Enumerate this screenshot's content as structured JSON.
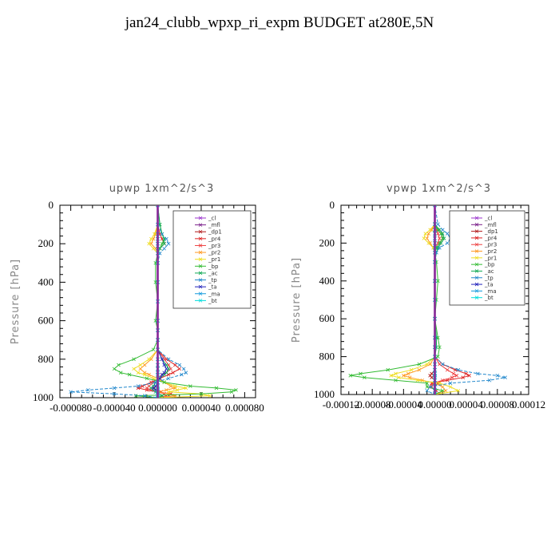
{
  "figure_title": "jan24_clubb_wpxp_ri_expm  BUDGET at280E,5N",
  "legend_entries": [
    {
      "name": "_cl",
      "color": "#9933cc"
    },
    {
      "name": "_mfl",
      "color": "#7a1f8a"
    },
    {
      "name": "_dp1",
      "color": "#b01515"
    },
    {
      "name": "_pr4",
      "color": "#dd2020"
    },
    {
      "name": "_pr3",
      "color": "#ee4040"
    },
    {
      "name": "_pr2",
      "color": "#ff9922"
    },
    {
      "name": "_pr1",
      "color": "#eedd22"
    },
    {
      "name": "_bp",
      "color": "#33bb33"
    },
    {
      "name": "_ac",
      "color": "#11aa55"
    },
    {
      "name": "_tp",
      "color": "#2288cc"
    },
    {
      "name": "_ta",
      "color": "#2222bb"
    },
    {
      "name": "_ma",
      "color": "#1199dd"
    },
    {
      "name": "_bt",
      "color": "#00dddd"
    }
  ],
  "chart_data": [
    {
      "type": "line",
      "title": "upwp   1xm^2/s^3",
      "ylabel": "Pressure [hPa]",
      "xlabel": "",
      "xlim": [
        -9e-05,
        9e-05
      ],
      "ylim": [
        1000,
        0
      ],
      "y_inverted": true,
      "xticks": [
        -8e-05,
        -4e-05,
        0,
        4e-05,
        8e-05
      ],
      "xtick_labels": [
        "-0.000080",
        "-0.000040",
        "0.000000",
        "0.000040",
        "0.000080"
      ],
      "yticks": [
        0,
        200,
        400,
        600,
        800,
        1000
      ],
      "ytick_labels": [
        "0",
        "200",
        "400",
        "600",
        "800",
        "1000"
      ],
      "legend": "top-right",
      "y": [
        0,
        100,
        150,
        175,
        200,
        225,
        250,
        300,
        400,
        500,
        600,
        650,
        700,
        750,
        800,
        830,
        850,
        870,
        880,
        900,
        920,
        940,
        950,
        960,
        970,
        980,
        990,
        1000
      ],
      "series": [
        {
          "name": "_cl",
          "values": [
            0,
            0,
            0,
            0,
            0,
            0,
            0,
            0,
            0,
            0,
            0,
            0,
            0,
            0,
            0,
            0,
            0,
            0,
            0,
            0,
            0,
            0,
            0,
            0,
            0,
            0,
            0,
            0
          ]
        },
        {
          "name": "_mfl",
          "values": [
            0,
            0,
            0,
            0,
            0,
            0,
            0,
            0,
            0,
            0,
            0,
            0,
            0,
            0,
            0,
            0,
            0,
            0,
            0,
            0,
            0,
            0,
            0,
            0,
            0,
            0,
            0,
            0
          ]
        },
        {
          "name": "_dp1",
          "values": [
            0,
            0,
            0,
            0,
            0,
            0,
            0,
            0,
            0,
            0,
            0,
            0,
            0,
            0,
            0,
            0,
            0,
            0,
            0,
            0,
            0,
            0,
            -4e-06,
            0,
            3e-06,
            0,
            0,
            0
          ]
        },
        {
          "name": "_pr4",
          "values": [
            0,
            0,
            2e-06,
            4e-06,
            6e-06,
            2e-06,
            0,
            0,
            0,
            0,
            0,
            0,
            0,
            0,
            8e-06,
            1.6e-05,
            2e-05,
            1.4e-05,
            1e-05,
            2e-06,
            -6e-06,
            -1.4e-05,
            -1.8e-05,
            -1e-05,
            0,
            1.2e-05,
            1.6e-05,
            0
          ]
        },
        {
          "name": "_pr3",
          "values": [
            0,
            0,
            0,
            0,
            0,
            0,
            0,
            0,
            0,
            0,
            0,
            0,
            0,
            0,
            6e-06,
            1e-05,
            1.2e-05,
            8e-06,
            4e-06,
            0,
            -4e-06,
            -8e-06,
            -1e-05,
            -6e-06,
            0,
            6e-06,
            8e-06,
            0
          ]
        },
        {
          "name": "_pr2",
          "values": [
            0,
            0,
            -2e-06,
            -4e-06,
            -6e-06,
            -2e-06,
            0,
            0,
            0,
            0,
            0,
            0,
            0,
            0,
            -6e-06,
            -1.2e-05,
            -1.6e-05,
            -1.2e-05,
            -8e-06,
            0,
            6e-06,
            1.2e-05,
            1.6e-05,
            8e-06,
            0,
            1e-05,
            1.6e-05,
            0
          ]
        },
        {
          "name": "_pr1",
          "values": [
            0,
            0,
            -3e-06,
            -6e-06,
            -8e-06,
            -4e-06,
            0,
            0,
            0,
            0,
            0,
            0,
            0,
            0,
            -8e-06,
            -1.6e-05,
            -2.2e-05,
            -1.8e-05,
            -1.2e-05,
            -4e-06,
            6e-06,
            1.6e-05,
            2.6e-05,
            1.8e-05,
            1e-05,
            4e-05,
            4.8e-05,
            0
          ]
        },
        {
          "name": "_bp",
          "values": [
            0,
            2e-06,
            4e-06,
            6e-06,
            4e-06,
            2e-06,
            0,
            -2e-06,
            -2e-06,
            0,
            -2e-06,
            0,
            0,
            -4e-06,
            -2.2e-05,
            -3.6e-05,
            -4e-05,
            -3.4e-05,
            -2.6e-05,
            -1e-05,
            6e-06,
            3e-05,
            5.4e-05,
            7.2e-05,
            6.8e-05,
            4e-05,
            -2e-05,
            0
          ]
        },
        {
          "name": "_ac",
          "values": [
            0,
            2e-06,
            4e-06,
            6e-06,
            6e-06,
            2e-06,
            0,
            0,
            0,
            0,
            0,
            0,
            0,
            0,
            4e-06,
            8e-06,
            1e-05,
            8e-06,
            6e-06,
            2e-06,
            -2e-06,
            -4e-06,
            -6e-06,
            -4e-06,
            -2e-06,
            0,
            4e-06,
            0
          ]
        },
        {
          "name": "_tp",
          "values": [
            0,
            0,
            4e-06,
            8e-06,
            1e-05,
            6e-06,
            2e-06,
            0,
            0,
            0,
            0,
            0,
            0,
            0,
            1e-05,
            2e-05,
            2.4e-05,
            2.6e-05,
            2.2e-05,
            1e-05,
            -2e-06,
            -1.8e-05,
            -4e-05,
            -6.4e-05,
            -8e-05,
            -4e-05,
            -1.2e-05,
            0
          ]
        },
        {
          "name": "_ta",
          "values": [
            0,
            0,
            0,
            0,
            0,
            0,
            0,
            0,
            0,
            0,
            0,
            0,
            0,
            0,
            4e-06,
            6e-06,
            8e-06,
            6e-06,
            4e-06,
            2e-06,
            0,
            -2e-06,
            -4e-06,
            -2e-06,
            0,
            0,
            0,
            0
          ]
        },
        {
          "name": "_ma",
          "values": [
            0,
            0,
            0,
            0,
            0,
            0,
            0,
            0,
            0,
            0,
            0,
            0,
            0,
            0,
            0,
            0,
            0,
            0,
            0,
            0,
            0,
            0,
            0,
            0,
            0,
            0,
            0,
            0
          ]
        },
        {
          "name": "_bt",
          "values": [
            0,
            0,
            0,
            0,
            0,
            0,
            0,
            0,
            0,
            0,
            0,
            0,
            0,
            0,
            0,
            0,
            0,
            0,
            0,
            0,
            0,
            0,
            0,
            0,
            0,
            0,
            0,
            0
          ]
        }
      ]
    },
    {
      "type": "line",
      "title": "vpwp   1xm^2/s^3",
      "ylabel": "Pressure [hPa]",
      "xlabel": "",
      "xlim": [
        -0.00012,
        0.00012
      ],
      "ylim": [
        1000,
        0
      ],
      "y_inverted": true,
      "xticks": [
        -0.00012,
        -8e-05,
        -4e-05,
        0,
        4e-05,
        8e-05,
        0.00012
      ],
      "xtick_labels": [
        "-0.00012",
        "-0.00008",
        "-0.00004",
        "0.00000",
        "0.00004",
        "0.00008",
        "0.00012"
      ],
      "yticks": [
        0,
        200,
        400,
        600,
        800,
        1000
      ],
      "ytick_labels": [
        "0",
        "200",
        "400",
        "600",
        "800",
        "1000"
      ],
      "legend": "top-right",
      "y": [
        0,
        100,
        130,
        150,
        175,
        200,
        225,
        250,
        300,
        400,
        500,
        600,
        700,
        750,
        800,
        840,
        870,
        890,
        900,
        910,
        925,
        940,
        960,
        980,
        1000
      ],
      "series": [
        {
          "name": "_cl",
          "values": [
            0,
            0,
            0,
            0,
            0,
            0,
            0,
            0,
            0,
            0,
            0,
            0,
            0,
            0,
            0,
            0,
            0,
            0,
            0,
            0,
            0,
            0,
            0,
            0,
            0
          ]
        },
        {
          "name": "_mfl",
          "values": [
            0,
            0,
            0,
            0,
            0,
            0,
            0,
            0,
            0,
            0,
            0,
            0,
            0,
            0,
            0,
            0,
            0,
            0,
            0,
            0,
            0,
            0,
            0,
            0,
            0
          ]
        },
        {
          "name": "_dp1",
          "values": [
            0,
            0,
            0,
            0,
            0,
            0,
            0,
            0,
            0,
            0,
            0,
            0,
            0,
            0,
            0,
            0,
            0,
            -4e-06,
            -6e-06,
            -4e-06,
            0,
            4e-06,
            0,
            0,
            0
          ]
        },
        {
          "name": "_pr4",
          "values": [
            0,
            0,
            4e-06,
            8e-06,
            1e-05,
            6e-06,
            2e-06,
            0,
            0,
            0,
            0,
            0,
            0,
            0,
            0,
            1e-05,
            2.6e-05,
            4e-05,
            4.4e-05,
            3.6e-05,
            1.6e-05,
            -4e-06,
            -6e-06,
            2e-06,
            0
          ]
        },
        {
          "name": "_pr3",
          "values": [
            0,
            0,
            2e-06,
            4e-06,
            6e-06,
            4e-06,
            0,
            0,
            0,
            0,
            0,
            0,
            0,
            0,
            0,
            6e-06,
            1.6e-05,
            2.4e-05,
            2.8e-05,
            2.2e-05,
            1e-05,
            -2e-06,
            -4e-06,
            0,
            0
          ]
        },
        {
          "name": "_pr2",
          "values": [
            0,
            0,
            -4e-06,
            -8e-06,
            -1e-05,
            -6e-06,
            -2e-06,
            0,
            0,
            0,
            0,
            0,
            0,
            0,
            0,
            -6e-06,
            -2e-05,
            -3.4e-05,
            -4e-05,
            -3.2e-05,
            -1.6e-05,
            0,
            1e-05,
            1.4e-05,
            0
          ]
        },
        {
          "name": "_pr1",
          "values": [
            0,
            0,
            -6e-06,
            -1.2e-05,
            -1.4e-05,
            -8e-06,
            -2e-06,
            0,
            0,
            0,
            0,
            0,
            0,
            0,
            0,
            -1e-05,
            -3e-05,
            -5e-05,
            -5.6e-05,
            -4.6e-05,
            -2.2e-05,
            6e-06,
            2e-05,
            3e-05,
            0
          ]
        },
        {
          "name": "_bp",
          "values": [
            0,
            0,
            4e-06,
            8e-06,
            1e-05,
            6e-06,
            2e-06,
            0,
            2e-06,
            4e-06,
            2e-06,
            0,
            4e-06,
            6e-06,
            4e-06,
            -2e-05,
            -6e-05,
            -9.5e-05,
            -0.000108,
            -9e-05,
            -5e-05,
            -1e-05,
            -1e-05,
            1e-05,
            0
          ]
        },
        {
          "name": "_ac",
          "values": [
            0,
            0,
            6e-06,
            1e-05,
            1.2e-05,
            8e-06,
            4e-06,
            2e-06,
            0,
            0,
            0,
            0,
            2e-06,
            2e-06,
            0,
            0,
            0,
            0,
            0,
            0,
            0,
            0,
            0,
            0,
            0
          ]
        },
        {
          "name": "_tp",
          "values": [
            0,
            4e-06,
            1e-05,
            1.6e-05,
            2e-05,
            1.6e-05,
            6e-06,
            2e-06,
            0,
            0,
            0,
            0,
            0,
            0,
            0,
            1e-05,
            3e-05,
            5.5e-05,
            8e-05,
            9e-05,
            7e-05,
            2e-05,
            -6e-06,
            -1e-05,
            0
          ]
        },
        {
          "name": "_ta",
          "values": [
            0,
            0,
            0,
            0,
            0,
            0,
            0,
            0,
            0,
            0,
            0,
            0,
            0,
            0,
            0,
            0,
            0,
            0,
            0,
            0,
            0,
            0,
            0,
            0,
            0
          ]
        },
        {
          "name": "_ma",
          "values": [
            0,
            0,
            0,
            0,
            0,
            0,
            0,
            0,
            0,
            0,
            0,
            0,
            0,
            0,
            0,
            0,
            0,
            0,
            0,
            0,
            0,
            0,
            0,
            0,
            0
          ]
        },
        {
          "name": "_bt",
          "values": [
            0,
            0,
            0,
            0,
            0,
            0,
            0,
            0,
            0,
            0,
            0,
            0,
            0,
            0,
            0,
            0,
            0,
            0,
            0,
            0,
            0,
            0,
            0,
            0,
            0
          ]
        }
      ]
    }
  ]
}
